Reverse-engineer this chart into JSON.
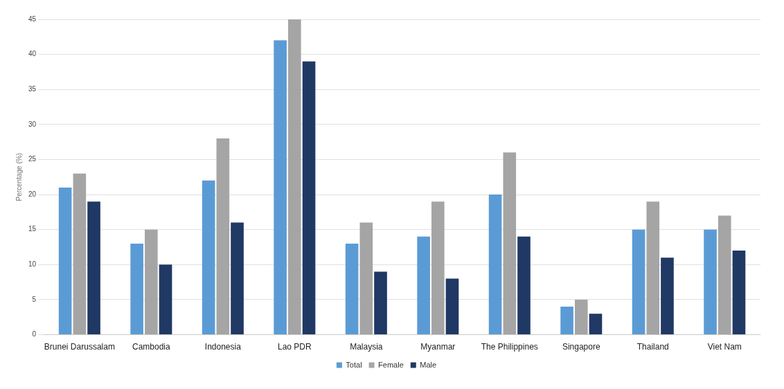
{
  "chart_data": {
    "type": "bar",
    "ylabel": "Percentage (%)",
    "categories": [
      "Brunei Darussalam",
      "Cambodia",
      "Indonesia",
      "Lao PDR",
      "Malaysia",
      "Myanmar",
      "The Philippines",
      "Singapore",
      "Thailand",
      "Viet Nam"
    ],
    "series": [
      {
        "name": "Total",
        "color": "#5b9bd5",
        "values": [
          21,
          13,
          22,
          42,
          13,
          14,
          20,
          4,
          15,
          15
        ]
      },
      {
        "name": "Female",
        "color": "#a5a5a5",
        "values": [
          23,
          15,
          28,
          45,
          16,
          19,
          26,
          5,
          19,
          17
        ]
      },
      {
        "name": "Male",
        "color": "#203864",
        "values": [
          19,
          10,
          16,
          39,
          9,
          8,
          14,
          3,
          11,
          12
        ]
      }
    ],
    "ylim": [
      0,
      45
    ],
    "yticks": [
      0,
      5,
      10,
      15,
      20,
      25,
      30,
      35,
      40,
      45
    ],
    "grid": "y",
    "legend": "bottom"
  }
}
